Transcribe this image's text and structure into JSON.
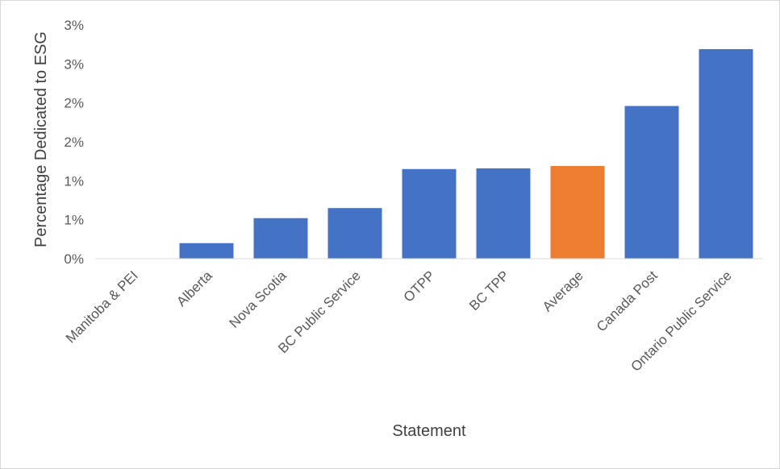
{
  "chart_data": {
    "type": "bar",
    "title": "",
    "xlabel": "Statement",
    "ylabel": "Percentage Dedicated to ESG",
    "ylim": [
      0,
      3
    ],
    "y_ticks": [
      0,
      0.5,
      1,
      1.5,
      2,
      2.5,
      3
    ],
    "y_tick_labels": [
      "0%",
      "1%",
      "1%",
      "2%",
      "2%",
      "3%",
      "3%"
    ],
    "categories": [
      "Manitoba & PEI",
      "Alberta",
      "Nova Scotia",
      "BC Public Service",
      "OTPP",
      "BC TPP",
      "Average",
      "Canada Post",
      "Ontario Public Service"
    ],
    "values": [
      0,
      0.2,
      0.52,
      0.65,
      1.15,
      1.16,
      1.19,
      1.96,
      2.69
    ],
    "bar_colors": [
      "#4472c4",
      "#4472c4",
      "#4472c4",
      "#4472c4",
      "#4472c4",
      "#4472c4",
      "#ed7d31",
      "#4472c4",
      "#4472c4"
    ],
    "grid": false,
    "legend": "none"
  }
}
